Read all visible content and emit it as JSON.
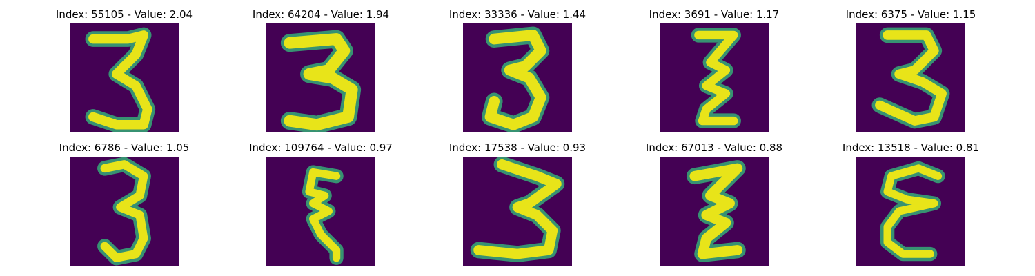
{
  "panels": [
    {
      "title": "Index: 55105 - Value: 2.04",
      "glyph": "3"
    },
    {
      "title": "Index: 64204 - Value: 1.94",
      "glyph": "3"
    },
    {
      "title": "Index: 33336 - Value: 1.44",
      "glyph": "3"
    },
    {
      "title": "Index: 3691 - Value: 1.17",
      "glyph": "3"
    },
    {
      "title": "Index: 6375 - Value: 1.15",
      "glyph": "3"
    },
    {
      "title": "Index: 6786 - Value: 1.05",
      "glyph": "3"
    },
    {
      "title": "Index: 109764 - Value: 0.97",
      "glyph": "3"
    },
    {
      "title": "Index: 17538 - Value: 0.93",
      "glyph": "3"
    },
    {
      "title": "Index: 67013 - Value: 0.88",
      "glyph": "3"
    },
    {
      "title": "Index: 13518 - Value: 0.81",
      "glyph": "3"
    }
  ],
  "colors": {
    "background": "#440154",
    "stroke": "#e8e419",
    "stroke_edge": "#35b779"
  }
}
